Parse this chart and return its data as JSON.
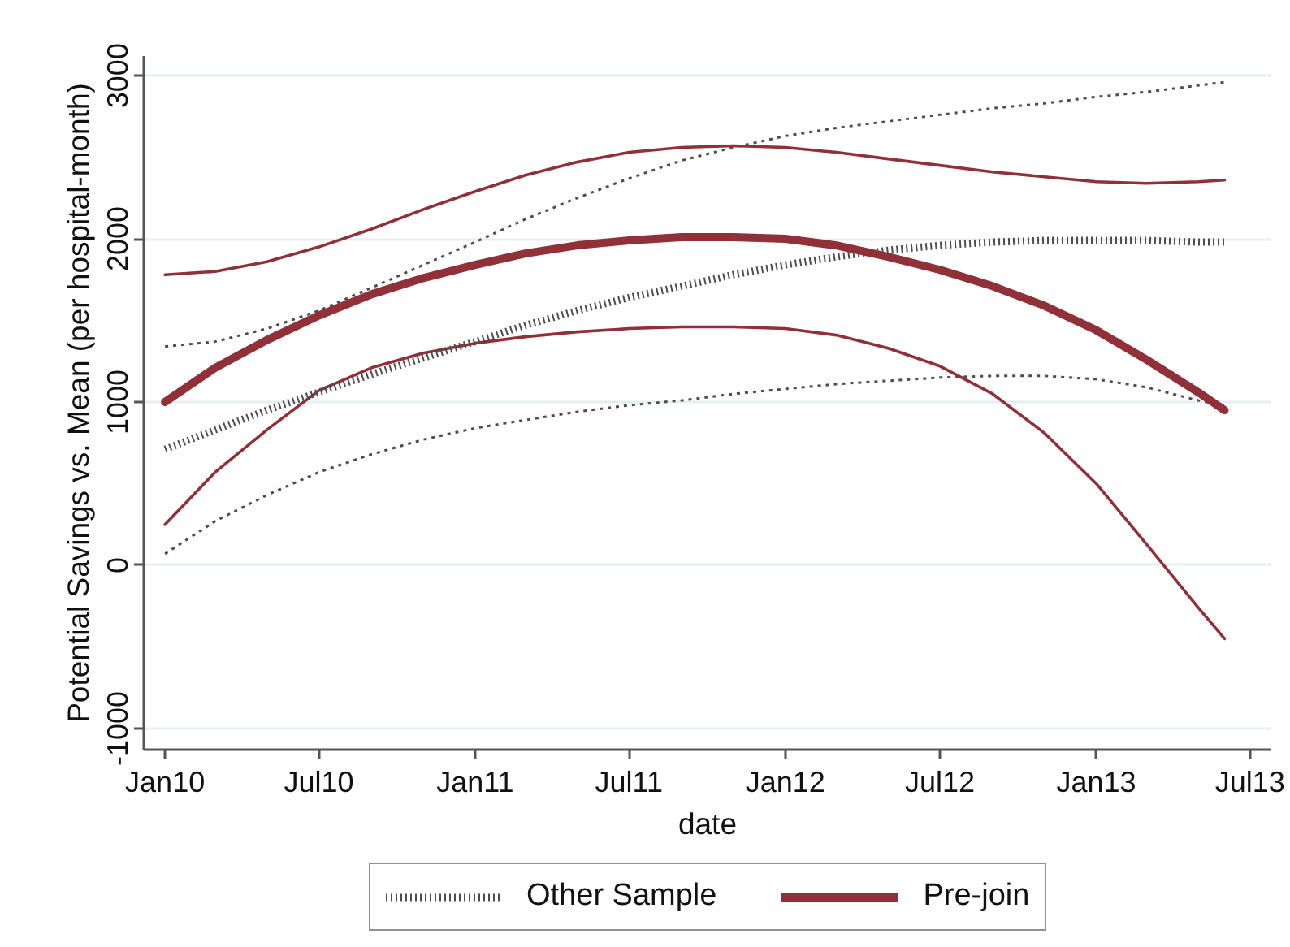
{
  "chart_data": {
    "type": "line",
    "xlabel": "date",
    "ylabel": "Potential Savings vs. Mean (per hospital-month)",
    "x": [
      "2010-01",
      "2010-03",
      "2010-05",
      "2010-07",
      "2010-09",
      "2010-11",
      "2011-01",
      "2011-03",
      "2011-05",
      "2011-07",
      "2011-09",
      "2011-11",
      "2012-01",
      "2012-03",
      "2012-05",
      "2012-07",
      "2012-09",
      "2012-11",
      "2013-01",
      "2013-03",
      "2013-05",
      "2013-06"
    ],
    "series": [
      {
        "color": "#4d4d4d",
        "line_style": "dotted",
        "values": [
          1340,
          1370,
          1450,
          1560,
          1700,
          1840,
          1980,
          2120,
          2250,
          2370,
          2480,
          2560,
          2630,
          2680,
          2720,
          2760,
          2800,
          2830,
          2870,
          2900,
          2940,
          2960
        ]
      },
      {
        "color": "#4d4d4d",
        "line_style": "dotted",
        "values": [
          70,
          270,
          430,
          570,
          680,
          770,
          840,
          890,
          940,
          980,
          1010,
          1050,
          1080,
          1110,
          1130,
          1150,
          1160,
          1160,
          1140,
          1090,
          1010,
          980
        ]
      },
      {
        "color": "#903038",
        "line_style": "solid",
        "values": [
          1780,
          1800,
          1860,
          1950,
          2060,
          2180,
          2290,
          2390,
          2470,
          2530,
          2560,
          2570,
          2560,
          2530,
          2490,
          2450,
          2410,
          2380,
          2350,
          2340,
          2350,
          2360
        ]
      },
      {
        "color": "#903038",
        "line_style": "solid",
        "values": [
          250,
          570,
          830,
          1070,
          1210,
          1300,
          1360,
          1400,
          1430,
          1450,
          1460,
          1460,
          1450,
          1410,
          1330,
          1220,
          1050,
          810,
          500,
          130,
          -260,
          -450
        ]
      },
      {
        "name": "Other Sample",
        "color": "#4d4d4d",
        "line_style": "dotted",
        "values": [
          710,
          830,
          950,
          1060,
          1170,
          1270,
          1370,
          1470,
          1560,
          1640,
          1710,
          1780,
          1840,
          1890,
          1930,
          1960,
          1980,
          1990,
          1990,
          1990,
          1980,
          1980
        ]
      },
      {
        "name": "Pre-join",
        "color": "#903038",
        "line_style": "solid",
        "values": [
          1000,
          1210,
          1380,
          1530,
          1660,
          1760,
          1840,
          1910,
          1960,
          1990,
          2010,
          2010,
          2000,
          1960,
          1890,
          1810,
          1710,
          1590,
          1440,
          1260,
          1060,
          950
        ]
      }
    ],
    "xlim": [
      "2009-12-07",
      "2013-07-26"
    ],
    "ylim": [
      -1130,
      3120
    ],
    "xticks": [
      {
        "value": "2010-01",
        "label": "Jan10"
      },
      {
        "value": "2010-07",
        "label": "Jul10"
      },
      {
        "value": "2011-01",
        "label": "Jan11"
      },
      {
        "value": "2011-07",
        "label": "Jul11"
      },
      {
        "value": "2012-01",
        "label": "Jan12"
      },
      {
        "value": "2012-07",
        "label": "Jul12"
      },
      {
        "value": "2013-01",
        "label": "Jan13"
      },
      {
        "value": "2013-07",
        "label": "Jul13"
      }
    ],
    "yticks": [
      -1000,
      0,
      1000,
      2000,
      3000
    ],
    "grid": "y",
    "legend": "bottom"
  }
}
